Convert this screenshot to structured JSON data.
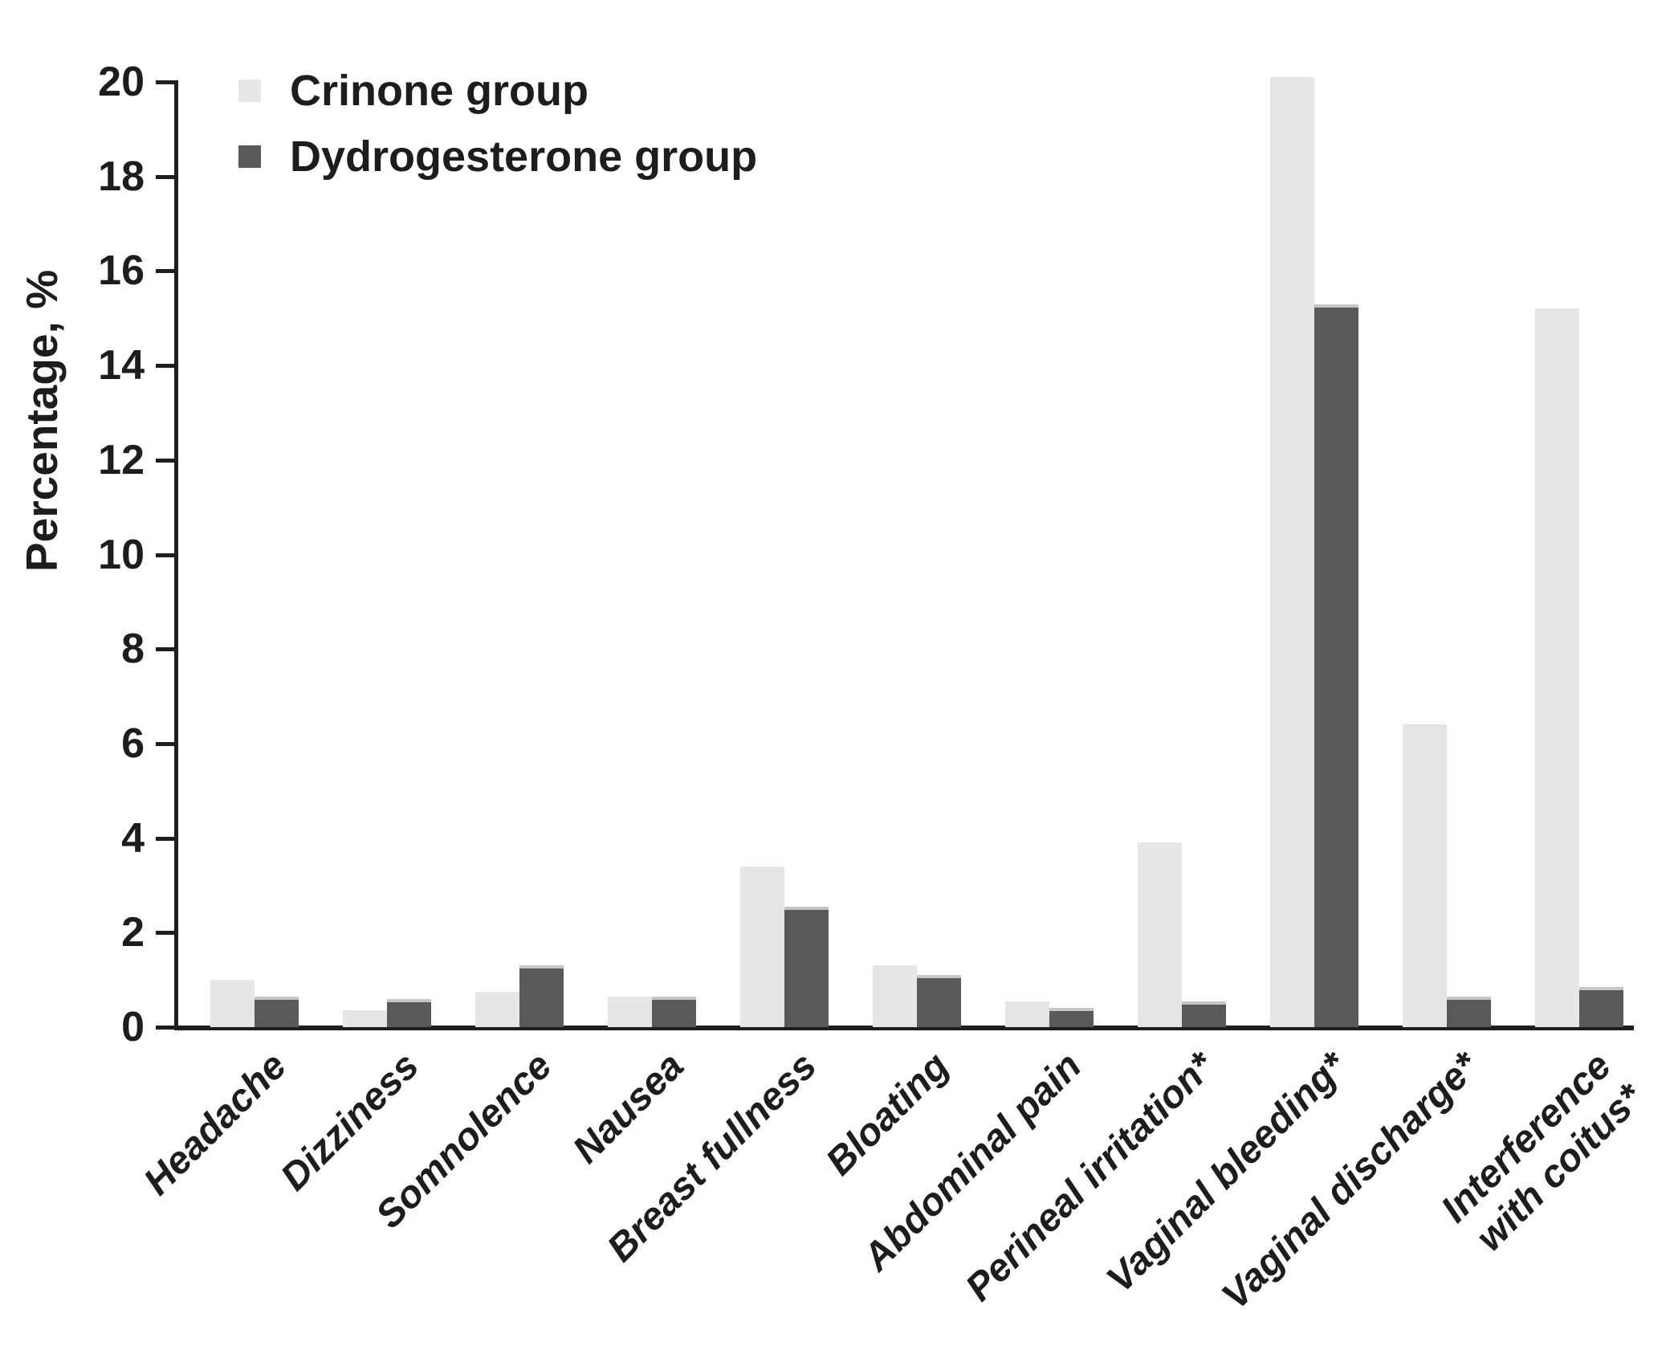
{
  "chart_data": {
    "type": "bar",
    "title": "",
    "ylabel": "Percentage, %",
    "xlabel": "",
    "ylim": [
      0,
      20
    ],
    "yticks": [
      0,
      2,
      4,
      6,
      8,
      10,
      12,
      14,
      16,
      18,
      20
    ],
    "grid": false,
    "legend_position": "top-left",
    "axis_color": "#1f1f1f",
    "text_color": "#1d1d1d",
    "categories": [
      "Headache",
      "Dizziness",
      "Somnolence",
      "Nausea",
      "Breast fullness",
      "Bloating",
      "Abdominal pain",
      "Perineal irritation*",
      "Vaginal bleeding*",
      "Vaginal discharge*",
      "Interference\nwith coitus*"
    ],
    "series": [
      {
        "name": "Crinone group",
        "color": "#e6e6e6",
        "values": [
          1.0,
          0.35,
          0.75,
          0.65,
          3.4,
          1.3,
          0.55,
          3.9,
          20.1,
          6.4,
          15.2
        ]
      },
      {
        "name": "Dydrogesterone group",
        "color": "#595959",
        "values": [
          0.65,
          0.6,
          1.3,
          0.65,
          2.55,
          1.1,
          0.4,
          0.55,
          15.3,
          0.65,
          0.85
        ]
      }
    ]
  }
}
